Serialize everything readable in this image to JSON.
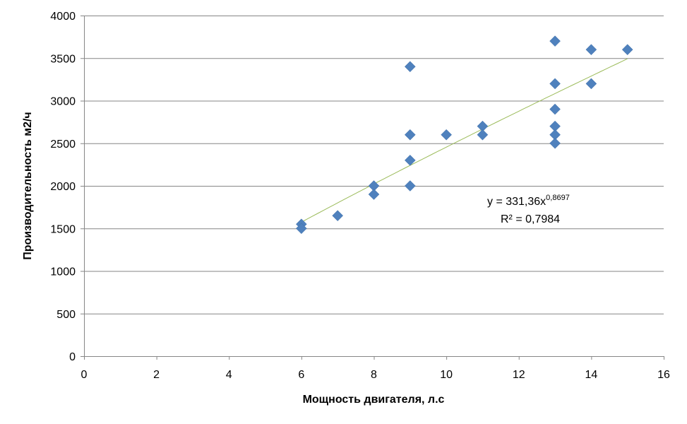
{
  "chart_data": {
    "type": "scatter",
    "title": "",
    "xlabel": "Мощность двигателя, л.с",
    "ylabel": "Производительность м2/ч",
    "xlim": [
      0,
      16
    ],
    "ylim": [
      0,
      4000
    ],
    "xticks": [
      0,
      2,
      4,
      6,
      8,
      10,
      12,
      14,
      16
    ],
    "yticks": [
      0,
      500,
      1000,
      1500,
      2000,
      2500,
      3000,
      3500,
      4000
    ],
    "grid": "horizontal",
    "marker_color": "#4F81BD",
    "trend_color": "#9BBB59",
    "points": [
      [
        6,
        1550
      ],
      [
        6,
        1500
      ],
      [
        7,
        1650
      ],
      [
        8,
        2000
      ],
      [
        8,
        1900
      ],
      [
        9,
        3400
      ],
      [
        9,
        2600
      ],
      [
        9,
        2300
      ],
      [
        9,
        2000
      ],
      [
        10,
        2600
      ],
      [
        11,
        2700
      ],
      [
        11,
        2600
      ],
      [
        13,
        3700
      ],
      [
        13,
        3200
      ],
      [
        13,
        2900
      ],
      [
        13,
        2700
      ],
      [
        13,
        2600
      ],
      [
        13,
        2500
      ],
      [
        14,
        3600
      ],
      [
        14,
        3200
      ],
      [
        15,
        3600
      ]
    ],
    "trendline": {
      "type": "power",
      "a": 331.36,
      "b": 0.8697,
      "x_range": [
        6,
        15
      ],
      "equation_base": "y = 331,36x",
      "equation_exp": "0,8697",
      "r2_label": "R² = 0,7984"
    }
  }
}
